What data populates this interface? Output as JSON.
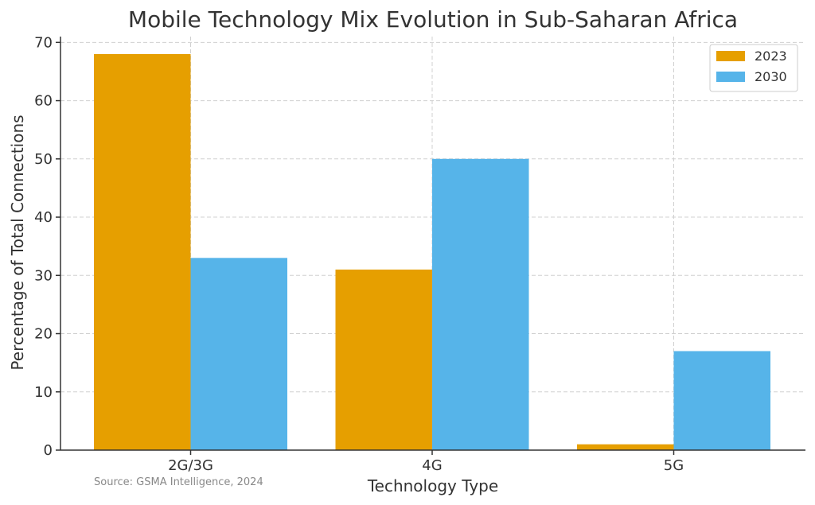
{
  "chart_data": {
    "type": "bar",
    "title": "Mobile Technology Mix Evolution in Sub-Saharan Africa",
    "xlabel": "Technology Type",
    "ylabel": "Percentage of Total Connections",
    "categories": [
      "2G/3G",
      "4G",
      "5G"
    ],
    "series": [
      {
        "name": "2023",
        "color": "#E69F00",
        "values": [
          68,
          31,
          1
        ]
      },
      {
        "name": "2030",
        "color": "#56B4E9",
        "values": [
          33,
          50,
          17
        ]
      }
    ],
    "ylim": [
      0,
      71
    ],
    "yticks": [
      0,
      10,
      20,
      30,
      40,
      50,
      60,
      70
    ],
    "grid": true,
    "legend_position": "top-right",
    "source": "Source: GSMA Intelligence, 2024"
  }
}
